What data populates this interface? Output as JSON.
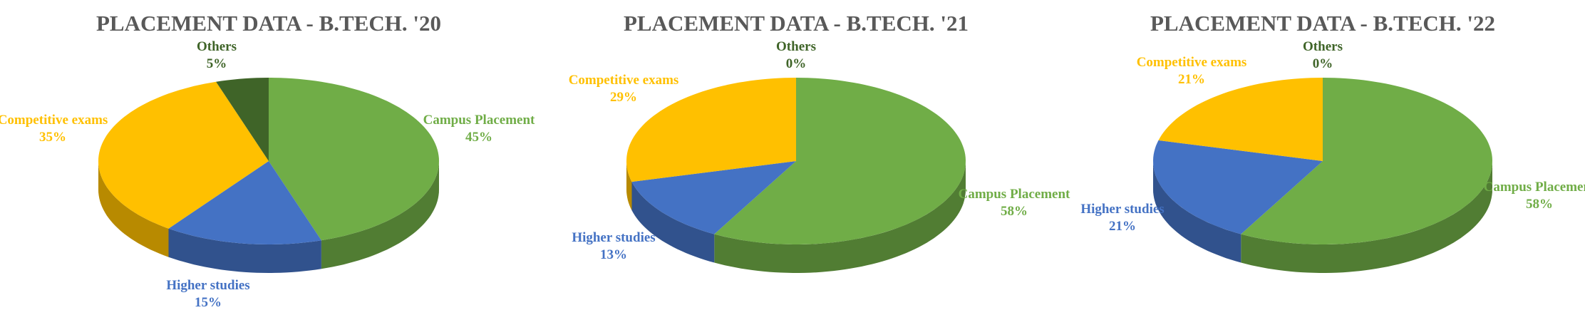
{
  "chart_data": [
    {
      "type": "pie",
      "title": "PLACEMENT DATA - B.TECH. '20",
      "categories": [
        "Campus Placement",
        "Higher studies",
        "Competitive exams",
        "Others"
      ],
      "values": [
        45,
        15,
        35,
        5
      ],
      "value_labels": [
        "45%",
        "15%",
        "35%",
        "5%"
      ],
      "colors": [
        "#70ad47",
        "#4472c4",
        "#ffc000",
        "#3f6428"
      ]
    },
    {
      "type": "pie",
      "title": "PLACEMENT DATA -  B.TECH. '21",
      "categories": [
        "Campus Placement",
        "Higher studies",
        "Competitive exams",
        "Others"
      ],
      "values": [
        58,
        13,
        29,
        0
      ],
      "value_labels": [
        "58%",
        "13%",
        "29%",
        "0%"
      ],
      "colors": [
        "#70ad47",
        "#4472c4",
        "#ffc000",
        "#3f6428"
      ]
    },
    {
      "type": "pie",
      "title": "PLACEMENT DATA -  B.TECH. '22",
      "categories": [
        "Campus Placement",
        "Higher studies",
        "Competitive exams",
        "Others"
      ],
      "values": [
        58,
        21,
        21,
        0
      ],
      "value_labels": [
        "58%",
        "21%",
        "21%",
        "0%"
      ],
      "colors": [
        "#70ad47",
        "#4472c4",
        "#ffc000",
        "#3f6428"
      ]
    }
  ]
}
